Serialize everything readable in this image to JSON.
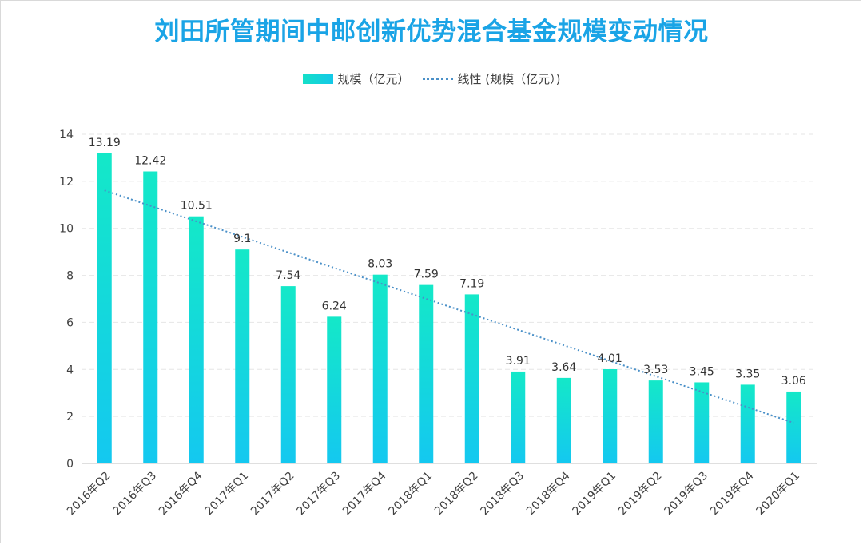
{
  "title": "刘田所管期间中邮创新优势混合基金规模变动情况",
  "legend": {
    "bar": "规模（亿元）",
    "trend": "线性 (规模（亿元）)"
  },
  "colors": {
    "title": "#1aa4e6",
    "bar_top": "#14e8c8",
    "bar_bottom": "#14c8f0",
    "trend": "#4a90c8"
  },
  "chart_data": {
    "type": "bar",
    "title": "刘田所管期间中邮创新优势混合基金规模变动情况",
    "categories": [
      "2016年Q2",
      "2016年Q3",
      "2016年Q4",
      "2017年Q1",
      "2017年Q2",
      "2017年Q3",
      "2017年Q4",
      "2018年Q1",
      "2018年Q2",
      "2018年Q3",
      "2018年Q4",
      "2019年Q1",
      "2019年Q2",
      "2019年Q3",
      "2019年Q4",
      "2020年Q1"
    ],
    "series": [
      {
        "name": "规模（亿元）",
        "values": [
          13.19,
          12.42,
          10.51,
          9.1,
          7.54,
          6.24,
          8.03,
          7.59,
          7.19,
          3.91,
          3.64,
          4.01,
          3.53,
          3.45,
          3.35,
          3.06
        ],
        "labels": [
          "13.19",
          "12.42",
          "10.51",
          "9.1",
          "7.54",
          "6.24",
          "8.03",
          "7.59",
          "7.19",
          "3.91",
          "3.64",
          "4.01",
          "3.53",
          "3.45",
          "3.35",
          "3.06"
        ]
      }
    ],
    "trendline": {
      "name": "线性 (规模（亿元）)",
      "type": "linear"
    },
    "ylim": [
      0,
      14
    ],
    "yticks": [
      0,
      2,
      4,
      6,
      8,
      10,
      12,
      14
    ],
    "grid": true,
    "legend_position": "top"
  }
}
